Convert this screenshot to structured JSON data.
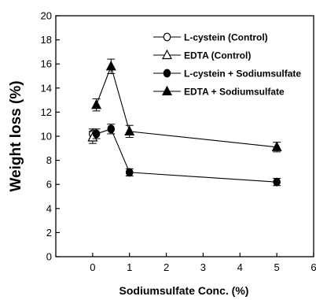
{
  "chart_data": {
    "type": "scatter",
    "xlabel": "Sodiumsulfate Conc. (%)",
    "ylabel": "Weight loss (%)",
    "xlim": [
      -1,
      6
    ],
    "ylim": [
      0,
      20
    ],
    "x_ticks": [
      0,
      1,
      2,
      3,
      4,
      5,
      6
    ],
    "y_ticks": [
      0,
      2,
      4,
      6,
      8,
      10,
      12,
      14,
      16,
      18,
      20
    ],
    "legend_position": "top-right",
    "series": [
      {
        "name": "L-cystein (Control)",
        "marker": "circle-open",
        "line": false,
        "x": [
          0
        ],
        "y": [
          10.2
        ],
        "err": [
          0.4
        ]
      },
      {
        "name": "EDTA (Control)",
        "marker": "triangle-open",
        "line": false,
        "x": [
          0
        ],
        "y": [
          9.9
        ],
        "err": [
          0.5
        ]
      },
      {
        "name": "L-cystein + Sodiumsulfate",
        "marker": "circle-filled",
        "line": true,
        "x": [
          0.1,
          0.5,
          1,
          5
        ],
        "y": [
          10.2,
          10.6,
          7.0,
          6.2
        ],
        "err": [
          0.4,
          0.4,
          0.3,
          0.3
        ]
      },
      {
        "name": "EDTA + Sodiumsulfate",
        "marker": "triangle-filled",
        "line": true,
        "x": [
          0.1,
          0.5,
          1,
          5
        ],
        "y": [
          12.6,
          15.8,
          10.4,
          9.1
        ],
        "err": [
          0.5,
          0.6,
          0.5,
          0.4
        ]
      }
    ]
  }
}
